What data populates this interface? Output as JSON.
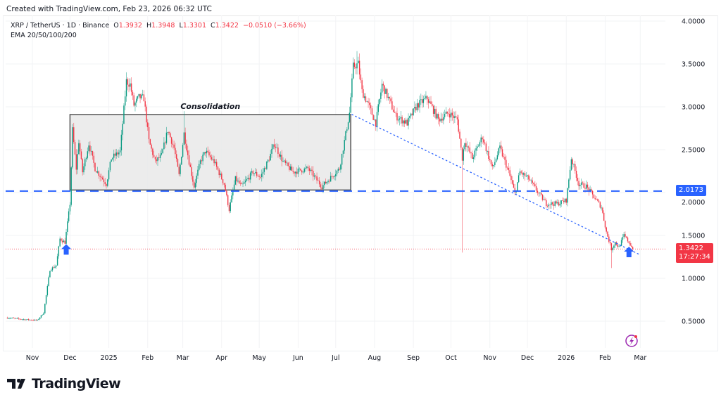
{
  "credit": "Created with TradingView.com, Feb 23, 2026 06:32 UTC",
  "legend": {
    "symbol": "XRP / TetherUS · 1D · Binance",
    "o_label": "O",
    "o": "1.3932",
    "h_label": "H",
    "h": "1.3948",
    "l_label": "L",
    "l": "1.3301",
    "c_label": "C",
    "c": "1.3422",
    "change": "−0.0510 (−3.66%)",
    "indicator": "EMA 20/50/100/200"
  },
  "brand": "TradingView",
  "colors": {
    "up": "#089981",
    "down": "#f23645",
    "level": "#2962ff",
    "box_fill": "#e9e9e9",
    "box_border": "#555555"
  },
  "chart_data": {
    "type": "candlestick",
    "y_ticks": [
      "4.0000",
      "3.5000",
      "3.0000",
      "2.5000",
      "2.0000",
      "1.5000",
      "1.0000",
      "0.5000"
    ],
    "ylim": [
      0.3,
      4.05
    ],
    "x_ticks": [
      [
        "Nov",
        "2024-11-01"
      ],
      [
        "Dec",
        "2024-12-01"
      ],
      [
        "2025",
        "2025-01-01"
      ],
      [
        "Feb",
        "2025-02-01"
      ],
      [
        "Mar",
        "2025-03-01"
      ],
      [
        "Apr",
        "2025-04-01"
      ],
      [
        "May",
        "2025-05-01"
      ],
      [
        "Jun",
        "2025-06-01"
      ],
      [
        "Jul",
        "2025-07-01"
      ],
      [
        "Aug",
        "2025-08-01"
      ],
      [
        "Sep",
        "2025-09-01"
      ],
      [
        "Oct",
        "2025-10-01"
      ],
      [
        "Nov",
        "2025-11-01"
      ],
      [
        "Dec",
        "2025-12-01"
      ],
      [
        "2026",
        "2026-01-01"
      ],
      [
        "Feb",
        "2026-02-01"
      ],
      [
        "Mar",
        "2026-03-01"
      ]
    ],
    "close_path": [
      [
        "2024-10-12",
        0.54
      ],
      [
        "2024-10-26",
        0.52
      ],
      [
        "2024-11-05",
        0.51
      ],
      [
        "2024-11-10",
        0.6
      ],
      [
        "2024-11-15",
        1.1
      ],
      [
        "2024-11-20",
        1.15
      ],
      [
        "2024-11-23",
        1.46
      ],
      [
        "2024-11-27",
        1.42
      ],
      [
        "2024-12-01",
        1.87
      ],
      [
        "2024-12-03",
        2.73
      ],
      [
        "2024-12-06",
        2.28
      ],
      [
        "2024-12-08",
        2.6
      ],
      [
        "2024-12-11",
        2.24
      ],
      [
        "2024-12-16",
        2.57
      ],
      [
        "2024-12-21",
        2.28
      ],
      [
        "2024-12-30",
        2.1
      ],
      [
        "2025-01-03",
        2.4
      ],
      [
        "2025-01-10",
        2.48
      ],
      [
        "2025-01-15",
        3.3
      ],
      [
        "2025-01-18",
        3.26
      ],
      [
        "2025-01-21",
        3.02
      ],
      [
        "2025-01-25",
        3.11
      ],
      [
        "2025-01-29",
        3.1
      ],
      [
        "2025-02-02",
        2.6
      ],
      [
        "2025-02-07",
        2.36
      ],
      [
        "2025-02-12",
        2.43
      ],
      [
        "2025-02-17",
        2.73
      ],
      [
        "2025-02-22",
        2.52
      ],
      [
        "2025-02-26",
        2.2
      ],
      [
        "2025-03-02",
        2.69
      ],
      [
        "2025-03-06",
        2.36
      ],
      [
        "2025-03-10",
        2.07
      ],
      [
        "2025-03-15",
        2.36
      ],
      [
        "2025-03-19",
        2.48
      ],
      [
        "2025-03-26",
        2.36
      ],
      [
        "2025-04-03",
        2.1
      ],
      [
        "2025-04-07",
        1.8
      ],
      [
        "2025-04-12",
        2.16
      ],
      [
        "2025-04-17",
        2.07
      ],
      [
        "2025-04-26",
        2.24
      ],
      [
        "2025-05-02",
        2.18
      ],
      [
        "2025-05-09",
        2.4
      ],
      [
        "2025-05-13",
        2.57
      ],
      [
        "2025-05-20",
        2.36
      ],
      [
        "2025-05-28",
        2.24
      ],
      [
        "2025-06-09",
        2.28
      ],
      [
        "2025-06-20",
        2.07
      ],
      [
        "2025-06-26",
        2.16
      ],
      [
        "2025-07-04",
        2.28
      ],
      [
        "2025-07-08",
        2.6
      ],
      [
        "2025-07-12",
        2.93
      ],
      [
        "2025-07-15",
        3.47
      ],
      [
        "2025-07-19",
        3.5
      ],
      [
        "2025-07-22",
        3.18
      ],
      [
        "2025-07-26",
        3.06
      ],
      [
        "2025-08-02",
        2.81
      ],
      [
        "2025-08-07",
        3.26
      ],
      [
        "2025-08-12",
        3.1
      ],
      [
        "2025-08-18",
        2.89
      ],
      [
        "2025-08-27",
        2.81
      ],
      [
        "2025-09-04",
        3.02
      ],
      [
        "2025-09-12",
        3.1
      ],
      [
        "2025-09-21",
        2.85
      ],
      [
        "2025-09-29",
        2.93
      ],
      [
        "2025-10-06",
        2.85
      ],
      [
        "2025-10-10",
        2.4
      ],
      [
        "2025-10-12",
        2.6
      ],
      [
        "2025-10-18",
        2.4
      ],
      [
        "2025-10-26",
        2.65
      ],
      [
        "2025-11-03",
        2.28
      ],
      [
        "2025-11-09",
        2.52
      ],
      [
        "2025-11-16",
        2.24
      ],
      [
        "2025-11-21",
        1.99
      ],
      [
        "2025-11-25",
        2.24
      ],
      [
        "2025-12-02",
        2.16
      ],
      [
        "2025-12-08",
        2.03
      ],
      [
        "2025-12-16",
        1.87
      ],
      [
        "2025-12-25",
        1.87
      ],
      [
        "2026-01-01",
        1.91
      ],
      [
        "2026-01-05",
        2.4
      ],
      [
        "2026-01-11",
        2.1
      ],
      [
        "2026-01-17",
        2.07
      ],
      [
        "2026-01-25",
        1.91
      ],
      [
        "2026-01-29",
        1.83
      ],
      [
        "2026-02-02",
        1.54
      ],
      [
        "2026-02-06",
        1.34
      ],
      [
        "2026-02-09",
        1.42
      ],
      [
        "2026-02-12",
        1.36
      ],
      [
        "2026-02-16",
        1.5
      ],
      [
        "2026-02-20",
        1.42
      ],
      [
        "2026-02-23",
        1.3422
      ]
    ],
    "notable_wicks": [
      [
        "2025-03-02",
        2.95,
        "high"
      ],
      [
        "2025-10-10",
        1.3,
        "low"
      ],
      [
        "2026-02-06",
        1.12,
        "low"
      ],
      [
        "2025-07-18",
        3.65,
        "high"
      ]
    ],
    "annotations": {
      "box_label": "Consolidation",
      "box_start": "2024-12-01",
      "box_end": "2025-07-13",
      "box_top": 2.91,
      "box_bottom": 2.03,
      "support_level": 2.0173,
      "support_label": "2.0173",
      "trendline": [
        [
          "2025-07-14",
          2.91
        ],
        [
          "2026-02-28",
          1.28
        ]
      ],
      "current_price": "1.3422",
      "countdown": "17:27:34",
      "arrows": [
        [
          "2024-11-28",
          1.3
        ],
        [
          "2026-02-20",
          1.27
        ]
      ]
    }
  }
}
